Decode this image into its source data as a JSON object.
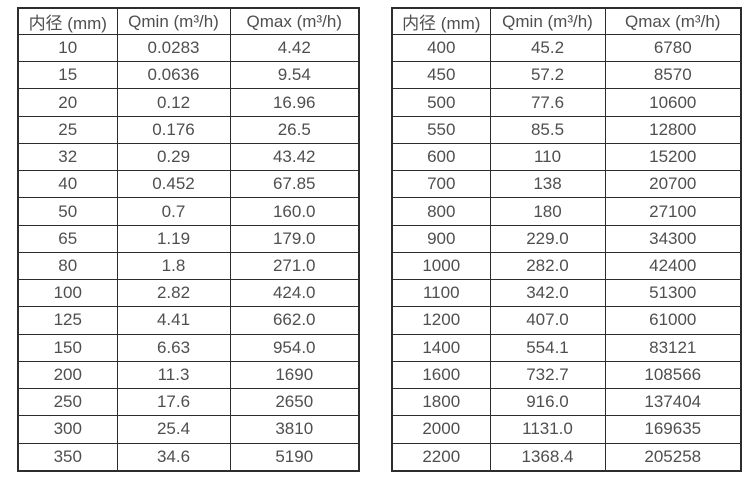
{
  "page": {
    "background": "#ffffff",
    "text_color": "#4f4f4f",
    "border_color": "#2d2d2d"
  },
  "left_table": {
    "headers": [
      "内径 (mm)",
      "Qmin (m³/h)",
      "Qmax (m³/h)"
    ],
    "rows": [
      [
        "10",
        "0.0283",
        "4.42"
      ],
      [
        "15",
        "0.0636",
        "9.54"
      ],
      [
        "20",
        "0.12",
        "16.96"
      ],
      [
        "25",
        "0.176",
        "26.5"
      ],
      [
        "32",
        "0.29",
        "43.42"
      ],
      [
        "40",
        "0.452",
        "67.85"
      ],
      [
        "50",
        "0.7",
        "160.0"
      ],
      [
        "65",
        "1.19",
        "179.0"
      ],
      [
        "80",
        "1.8",
        "271.0"
      ],
      [
        "100",
        "2.82",
        "424.0"
      ],
      [
        "125",
        "4.41",
        "662.0"
      ],
      [
        "150",
        "6.63",
        "954.0"
      ],
      [
        "200",
        "11.3",
        "1690"
      ],
      [
        "250",
        "17.6",
        "2650"
      ],
      [
        "300",
        "25.4",
        "3810"
      ],
      [
        "350",
        "34.6",
        "5190"
      ]
    ]
  },
  "right_table": {
    "headers": [
      "内径 (mm)",
      "Qmin (m³/h)",
      "Qmax (m³/h)"
    ],
    "rows": [
      [
        "400",
        "45.2",
        "6780"
      ],
      [
        "450",
        "57.2",
        "8570"
      ],
      [
        "500",
        "77.6",
        "10600"
      ],
      [
        "550",
        "85.5",
        "12800"
      ],
      [
        "600",
        "110",
        "15200"
      ],
      [
        "700",
        "138",
        "20700"
      ],
      [
        "800",
        "180",
        "27100"
      ],
      [
        "900",
        "229.0",
        "34300"
      ],
      [
        "1000",
        "282.0",
        "42400"
      ],
      [
        "1100",
        "342.0",
        "51300"
      ],
      [
        "1200",
        "407.0",
        "61000"
      ],
      [
        "1400",
        "554.1",
        "83121"
      ],
      [
        "1600",
        "732.7",
        "108566"
      ],
      [
        "1800",
        "916.0",
        "137404"
      ],
      [
        "2000",
        "1131.0",
        "169635"
      ],
      [
        "2200",
        "1368.4",
        "205258"
      ]
    ]
  }
}
